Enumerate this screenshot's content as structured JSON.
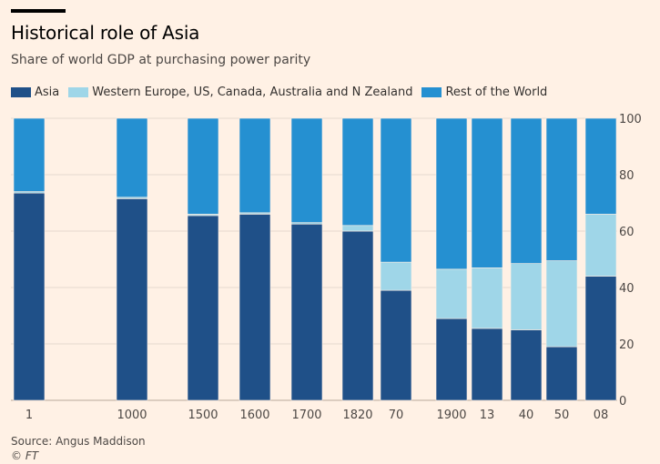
{
  "header": {
    "title": "Historical role of Asia",
    "subtitle": "Share of world GDP at purchasing power parity"
  },
  "legend": [
    {
      "label": "Asia",
      "color": "#1f5088"
    },
    {
      "label": "Western Europe, US, Canada, Australia and N Zealand",
      "color": "#9fd6e8"
    },
    {
      "label": "Rest of the World",
      "color": "#2590d1"
    }
  ],
  "footer": {
    "source": "Source: Angus Maddison",
    "credit": "© FT"
  },
  "chart_data": {
    "type": "bar",
    "stacked": true,
    "categories": [
      "1",
      "1000",
      "1500",
      "1600",
      "1700",
      "1820",
      "70",
      "1900",
      "13",
      "40",
      "50",
      "08"
    ],
    "series": [
      {
        "name": "Asia",
        "color": "#1f5088",
        "values": [
          73.5,
          71.5,
          65.5,
          66,
          62.5,
          60,
          39,
          29,
          25.5,
          25,
          19,
          44
        ]
      },
      {
        "name": "Western Europe, US, Canada, Australia and N Zealand",
        "color": "#9fd6e8",
        "values": [
          0.5,
          0.5,
          0.5,
          0.5,
          0.5,
          2,
          10,
          17.5,
          21.5,
          23.5,
          30.5,
          22
        ]
      },
      {
        "name": "Rest of the World",
        "color": "#2590d1",
        "values": [
          26,
          28,
          34,
          33.5,
          37,
          38,
          51,
          53.5,
          53,
          51.5,
          50.5,
          34
        ]
      }
    ],
    "ylim": [
      0,
      100
    ],
    "yticks": [
      0,
      20,
      40,
      60,
      80,
      100
    ],
    "y_axis_side": "right",
    "grid": true,
    "legend_position": "top-left"
  }
}
